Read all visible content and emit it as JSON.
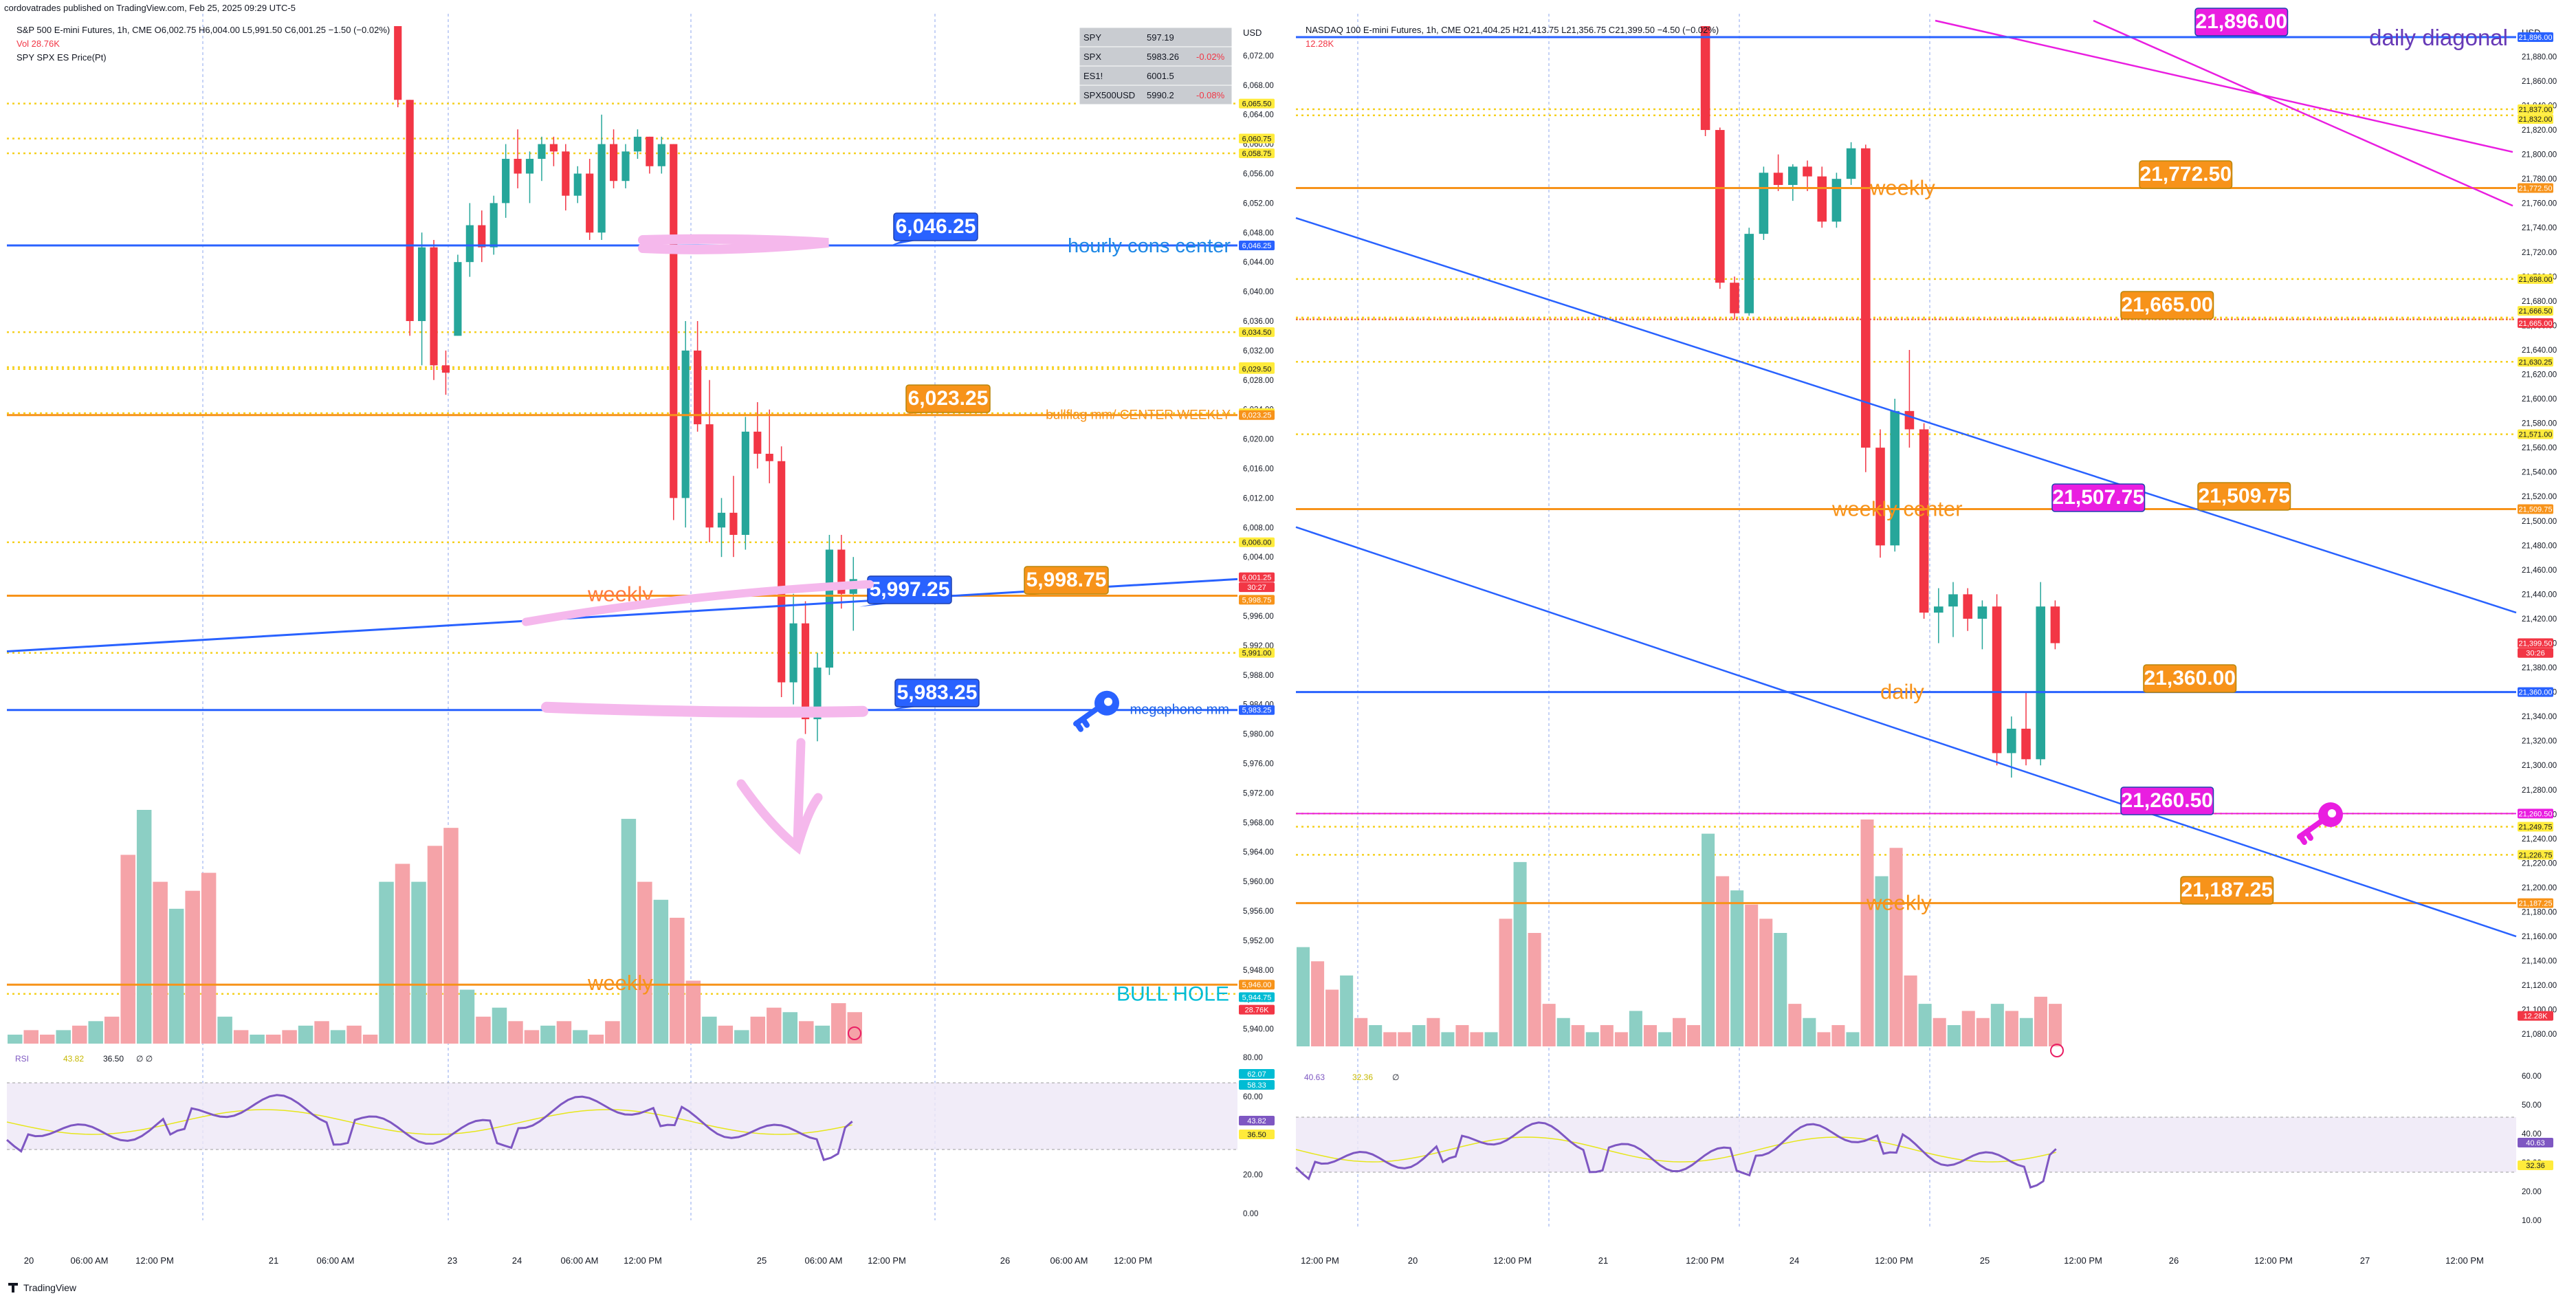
{
  "page_header": "cordovatrades published on TradingView.com, Feb 25, 2025 09:29 UTC-5",
  "footer_brand": "TradingView",
  "colors": {
    "bull": "#26a69a",
    "bear": "#f23645",
    "vol_bull": "#8ccfc4",
    "vol_bear": "#f5a3a8",
    "orange": "#f7931a",
    "blue": "#2962ff",
    "magenta": "#e91ee0",
    "yellow_dotted": "#f5d020",
    "rsi": "#7e57c2",
    "rsi_ma": "#e6e61a"
  },
  "panels": [
    {
      "id": "left",
      "legend": {
        "line1": "S&P 500 E-mini Futures, 1h, CME  O6,002.75  H6,004.00  L5,991.50  C6,001.25  −1.50 (−0.02%)",
        "line2": "Vol  28.76K",
        "line3": "SPY SPX ES Price(Pt)"
      },
      "watchlist": [
        {
          "sym": "SPY",
          "val": "597.19",
          "chg": ""
        },
        {
          "sym": "SPX",
          "val": "5983.26",
          "chg": "-0.02%"
        },
        {
          "sym": "ES1!",
          "val": "6001.5",
          "chg": ""
        },
        {
          "sym": "SPX500USD",
          "val": "5990.2",
          "chg": "-0.08%"
        }
      ],
      "currency": "USD",
      "price_ticks": [
        "6,072.00",
        "6,068.00",
        "6,064.00",
        "6,060.00",
        "6,056.00",
        "6,052.00",
        "6,048.00",
        "6,044.00",
        "6,040.00",
        "6,036.00",
        "6,032.00",
        "6,028.00",
        "6,024.00",
        "6,020.00",
        "6,016.00",
        "6,012.00",
        "6,008.00",
        "6,004.00",
        "6,000.00",
        "5,996.00",
        "5,992.00",
        "5,988.00",
        "5,984.00",
        "5,980.00",
        "5,976.00",
        "5,972.00",
        "5,968.00",
        "5,964.00",
        "5,960.00",
        "5,956.00",
        "5,952.00",
        "5,948.00",
        "5,944.00",
        "5,940.00"
      ],
      "axis_tags": [
        {
          "text": "6,065.50",
          "kind": "yellow",
          "price": 6065.5
        },
        {
          "text": "6,060.75",
          "kind": "yellow",
          "price": 6060.75
        },
        {
          "text": "6,058.75",
          "kind": "yellow",
          "price": 6058.75
        },
        {
          "text": "6,046.25",
          "kind": "blue",
          "price": 6046.25
        },
        {
          "text": "6,034.50",
          "kind": "yellow",
          "price": 6034.5
        },
        {
          "text": "6,029.75",
          "kind": "yellow",
          "price": 6029.75
        },
        {
          "text": "6,029.50",
          "kind": "yellow",
          "price": 6029.5
        },
        {
          "text": "6,023.50",
          "kind": "yellow",
          "price": 6023.5
        },
        {
          "text": "6,023.25",
          "kind": "orange",
          "price": 6023.25
        },
        {
          "text": "6,006.00",
          "kind": "yellow",
          "price": 6006.0
        },
        {
          "text": "6,001.25",
          "kind": "red",
          "price": 6001.25
        },
        {
          "text": "30:27",
          "kind": "red",
          "price": 5999.9
        },
        {
          "text": "5,998.75",
          "kind": "orange",
          "price": 5998.2
        },
        {
          "text": "5,991.00",
          "kind": "yellow",
          "price": 5991.0
        },
        {
          "text": "5,983.25",
          "kind": "blue",
          "price": 5983.25
        },
        {
          "text": "5,946.00",
          "kind": "orange",
          "price": 5946.0
        },
        {
          "text": "5,944.75",
          "kind": "teal",
          "price": 5944.3
        },
        {
          "text": "28.76K",
          "kind": "red",
          "price": 5942.6
        }
      ],
      "time_ticks": [
        "20",
        "06:00 AM",
        "12:00 PM",
        "21",
        "06:00 AM",
        "23",
        "24",
        "06:00 AM",
        "12:00 PM",
        "25",
        "06:00 AM",
        "12:00 PM",
        "26",
        "06:00 AM",
        "12:00 PM"
      ],
      "levels": [
        {
          "price": 6046.25,
          "color": "blue",
          "label": "hourly cons center",
          "callout": "6,046.25"
        },
        {
          "price": 6023.25,
          "color": "orange",
          "label": "bullflag mm/ CENTER WEEKLY",
          "callout": "6,023.25"
        },
        {
          "price": 5998.75,
          "color": "orange",
          "label": "weekly",
          "callout": "5,998.75"
        },
        {
          "price": 5983.25,
          "color": "blue",
          "label": "megaphone mm",
          "callout": "5,983.25"
        },
        {
          "price": 5946.0,
          "color": "orange",
          "label": "weekly",
          "callout": ""
        }
      ],
      "trend_callout": "5,997.25",
      "bull_hole_label": "BULL HOLE",
      "rsi": {
        "legend_name": "RSI",
        "legend_v1": "43.82",
        "legend_v2": "36.50",
        "legend_v3": "∅ ∅",
        "ticks": [
          "80.00",
          "60.00",
          "40.00",
          "20.00",
          "0.00"
        ],
        "tags": [
          {
            "text": "62.07",
            "kind": "teal"
          },
          {
            "text": "58.33",
            "kind": "teal"
          },
          {
            "text": "43.82",
            "kind": "purple"
          },
          {
            "text": "36.50",
            "kind": "yellow"
          }
        ]
      }
    },
    {
      "id": "right",
      "legend": {
        "line1": "NASDAQ 100 E-mini Futures, 1h, CME  O21,404.25  H21,413.75  L21,356.75  C21,399.50  −4.50 (−0.02%)",
        "line2": "12.28K"
      },
      "currency": "USD",
      "price_ticks": [
        "21,880.00",
        "21,860.00",
        "21,840.00",
        "21,820.00",
        "21,800.00",
        "21,780.00",
        "21,760.00",
        "21,740.00",
        "21,720.00",
        "21,700.00",
        "21,680.00",
        "21,660.00",
        "21,640.00",
        "21,620.00",
        "21,600.00",
        "21,580.00",
        "21,560.00",
        "21,540.00",
        "21,520.00",
        "21,500.00",
        "21,480.00",
        "21,460.00",
        "21,440.00",
        "21,420.00",
        "21,400.00",
        "21,380.00",
        "21,360.00",
        "21,340.00",
        "21,320.00",
        "21,300.00",
        "21,280.00",
        "21,260.00",
        "21,240.00",
        "21,220.00",
        "21,200.00",
        "21,180.00",
        "21,160.00",
        "21,140.00",
        "21,120.00",
        "21,100.00",
        "21,080.00"
      ],
      "axis_tags": [
        {
          "text": "21,896.00",
          "kind": "blue",
          "price": 21896
        },
        {
          "text": "21,837.00",
          "kind": "yellow",
          "price": 21837
        },
        {
          "text": "21,832.00",
          "kind": "yellow",
          "price": 21829
        },
        {
          "text": "21,772.50",
          "kind": "orange",
          "price": 21772.5
        },
        {
          "text": "21,698.00",
          "kind": "yellow",
          "price": 21698
        },
        {
          "text": "21,666.50",
          "kind": "yellow",
          "price": 21672
        },
        {
          "text": "21,665.00",
          "kind": "red",
          "price": 21662
        },
        {
          "text": "21,630.25",
          "kind": "yellow",
          "price": 21630.25
        },
        {
          "text": "21,571.00",
          "kind": "yellow",
          "price": 21571
        },
        {
          "text": "21,509.75",
          "kind": "orange",
          "price": 21509.75
        },
        {
          "text": "21,399.50",
          "kind": "red",
          "price": 21400
        },
        {
          "text": "30:26",
          "kind": "red",
          "price": 21392
        },
        {
          "text": "21,360.00",
          "kind": "blue",
          "price": 21360
        },
        {
          "text": "21,260.50",
          "kind": "magenta",
          "price": 21260.5
        },
        {
          "text": "21,249.75",
          "kind": "yellow",
          "price": 21249.75
        },
        {
          "text": "21,226.75",
          "kind": "yellow",
          "price": 21226.75
        },
        {
          "text": "21,187.25",
          "kind": "orange",
          "price": 21187.25
        },
        {
          "text": "12.28K",
          "kind": "red",
          "price": 21095
        }
      ],
      "time_ticks": [
        "12:00 PM",
        "20",
        "12:00 PM",
        "21",
        "12:00 PM",
        "24",
        "12:00 PM",
        "25",
        "12:00 PM",
        "26",
        "12:00 PM",
        "27",
        "12:00 PM"
      ],
      "levels": [
        {
          "price": 21772.5,
          "color": "orange",
          "label": "weekly",
          "callout": "21,772.50"
        },
        {
          "price": 21665.0,
          "color": "red",
          "label": "",
          "callout": "21,665.00"
        },
        {
          "price": 21509.75,
          "color": "orange",
          "label": "weekly center",
          "callout": "21,509.75"
        },
        {
          "price": 21360.0,
          "color": "blue",
          "label": "daily",
          "callout": "21,360.00"
        },
        {
          "price": 21187.25,
          "color": "orange",
          "label": "weekly",
          "callout": "21,187.25"
        }
      ],
      "diagonal_label": "daily diagonal",
      "diagonal_callout": "21,896.00",
      "trend_callout": "21,507.75",
      "key_callout": "21,260.50",
      "rsi": {
        "legend_name": "40.63",
        "legend_v1": "32.36",
        "legend_v2": "∅",
        "ticks": [
          "60.00",
          "50.00",
          "40.00",
          "30.00",
          "20.00",
          "10.00"
        ],
        "tags": [
          {
            "text": "40.63",
            "kind": "purple"
          },
          {
            "text": "32.36",
            "kind": "yellow"
          }
        ]
      }
    }
  ],
  "chart_data": [
    {
      "type": "candlestick",
      "title": "S&P 500 E-mini Futures, 1h, CME",
      "ylim": [
        5938,
        6076
      ],
      "horizontal_levels": [
        6065.5,
        6060.75,
        6058.75,
        6046.25,
        6034.5,
        6029.75,
        6029.5,
        6023.5,
        6023.25,
        6006.0,
        5998.75,
        5991.0,
        5983.25,
        5946.0,
        5944.75
      ],
      "candles": [
        [
          6076,
          6076,
          6065,
          6066
        ],
        [
          6066,
          6066,
          6034,
          6036
        ],
        [
          6036,
          6048,
          6030,
          6046
        ],
        [
          6046,
          6047,
          6028,
          6030
        ],
        [
          6030,
          6032,
          6026,
          6029
        ],
        [
          6034,
          6045,
          6034,
          6044
        ],
        [
          6044,
          6052,
          6042,
          6049
        ],
        [
          6049,
          6051,
          6044,
          6046
        ],
        [
          6046,
          6053,
          6045,
          6052
        ],
        [
          6052,
          6060,
          6050,
          6058
        ],
        [
          6058,
          6062,
          6054,
          6056
        ],
        [
          6056,
          6059,
          6052,
          6058
        ],
        [
          6058,
          6061,
          6055,
          6060
        ],
        [
          6060,
          6061,
          6057,
          6059
        ],
        [
          6059,
          6060,
          6051,
          6053
        ],
        [
          6053,
          6057,
          6052,
          6056
        ],
        [
          6056,
          6058,
          6047,
          6048
        ],
        [
          6048,
          6064,
          6047,
          6060
        ],
        [
          6060,
          6062,
          6054,
          6055
        ],
        [
          6055,
          6060,
          6054,
          6059
        ],
        [
          6059,
          6062,
          6058,
          6061
        ],
        [
          6061,
          6061,
          6056,
          6057
        ],
        [
          6057,
          6061,
          6056,
          6060
        ],
        [
          6060,
          6060,
          6009,
          6012
        ],
        [
          6012,
          6036,
          6008,
          6032
        ],
        [
          6032,
          6036,
          6021,
          6022
        ],
        [
          6022,
          6028,
          6006,
          6008
        ],
        [
          6008,
          6012,
          6004,
          6010
        ],
        [
          6010,
          6015,
          6004,
          6007
        ],
        [
          6007,
          6023,
          6005,
          6021
        ],
        [
          6021,
          6025,
          6016,
          6018
        ],
        [
          6018,
          6024,
          6014,
          6017
        ],
        [
          6017,
          6019,
          5985,
          5987
        ],
        [
          5987,
          5999,
          5984,
          5995
        ],
        [
          5995,
          5998,
          5980,
          5982
        ],
        [
          5982,
          5991,
          5979,
          5989
        ],
        [
          5989,
          6007,
          5988,
          6005
        ],
        [
          6005,
          6007,
          5997,
          5999
        ],
        [
          5999,
          6004,
          5994,
          6001
        ]
      ],
      "volume_k": [
        2,
        3,
        2,
        3,
        4,
        5,
        6,
        42,
        52,
        36,
        30,
        34,
        38,
        6,
        3,
        2,
        2,
        3,
        4,
        5,
        3,
        4,
        2,
        36,
        40,
        36,
        44,
        48,
        12,
        6,
        8,
        5,
        3,
        4,
        5,
        3,
        2,
        5,
        50,
        36,
        32,
        28,
        14,
        6,
        4,
        3,
        6,
        8,
        7,
        5,
        4,
        9,
        7
      ]
    },
    {
      "type": "candlestick",
      "title": "NASDAQ 100 E-mini Futures, 1h, CME",
      "ylim": [
        21070,
        21905
      ],
      "horizontal_levels": [
        21896,
        21837,
        21832,
        21772.5,
        21698,
        21666.5,
        21665,
        21630.25,
        21571,
        21509.75,
        21360,
        21260.5,
        21249.75,
        21226.75,
        21187.25
      ],
      "candles": [
        [
          21905,
          21905,
          21815,
          21820
        ],
        [
          21820,
          21822,
          21690,
          21695
        ],
        [
          21695,
          21700,
          21665,
          21670
        ],
        [
          21670,
          21740,
          21668,
          21735
        ],
        [
          21735,
          21790,
          21730,
          21785
        ],
        [
          21785,
          21800,
          21770,
          21775
        ],
        [
          21775,
          21792,
          21762,
          21790
        ],
        [
          21790,
          21795,
          21770,
          21782
        ],
        [
          21782,
          21790,
          21740,
          21745
        ],
        [
          21745,
          21785,
          21740,
          21780
        ],
        [
          21780,
          21810,
          21775,
          21805
        ],
        [
          21805,
          21808,
          21540,
          21560
        ],
        [
          21560,
          21575,
          21470,
          21480
        ],
        [
          21480,
          21600,
          21475,
          21590
        ],
        [
          21590,
          21640,
          21560,
          21575
        ],
        [
          21575,
          21580,
          21420,
          21425
        ],
        [
          21425,
          21445,
          21400,
          21430
        ],
        [
          21430,
          21450,
          21405,
          21440
        ],
        [
          21440,
          21445,
          21410,
          21420
        ],
        [
          21420,
          21435,
          21395,
          21430
        ],
        [
          21430,
          21440,
          21300,
          21310
        ],
        [
          21310,
          21340,
          21290,
          21330
        ],
        [
          21330,
          21360,
          21300,
          21305
        ],
        [
          21305,
          21450,
          21300,
          21430
        ],
        [
          21430,
          21435,
          21395,
          21400
        ]
      ],
      "volume_k": [
        14,
        12,
        8,
        10,
        4,
        3,
        2,
        2,
        3,
        4,
        2,
        3,
        2,
        2,
        18,
        26,
        16,
        6,
        4,
        3,
        2,
        3,
        2,
        5,
        3,
        2,
        4,
        3,
        30,
        24,
        22,
        20,
        18,
        16,
        6,
        4,
        2,
        3,
        2,
        32,
        24,
        28,
        10,
        6,
        4,
        3,
        5,
        4,
        6,
        5,
        4,
        7,
        6
      ]
    }
  ]
}
